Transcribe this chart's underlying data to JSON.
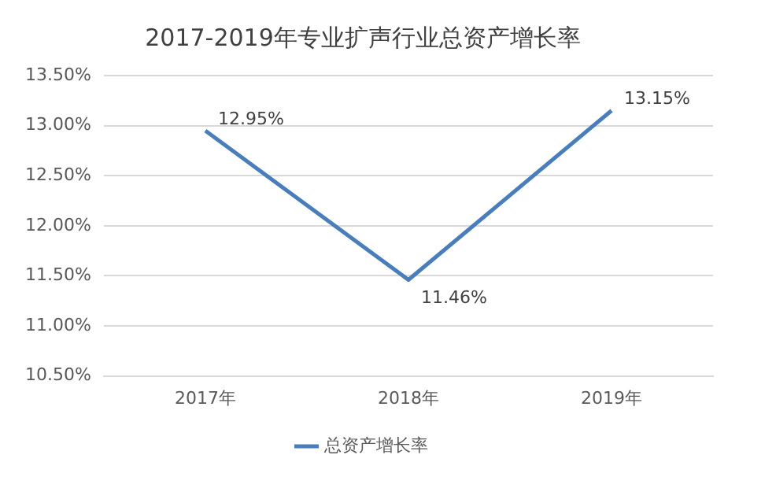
{
  "chart_data": {
    "type": "line",
    "title": "2017-2019年专业扩声行业总资产增长率",
    "categories": [
      "2017年",
      "2018年",
      "2019年"
    ],
    "series": [
      {
        "name": "总资产增长率",
        "color": "#4a7ebb",
        "values": [
          12.95,
          11.46,
          13.15
        ],
        "value_labels": [
          "12.95%",
          "11.46%",
          "13.15%"
        ]
      }
    ],
    "ylim": [
      10.5,
      13.5
    ],
    "yticks": [
      {
        "value": 10.5,
        "label": "10.50%"
      },
      {
        "value": 11,
        "label": "11.00%"
      },
      {
        "value": 11.5,
        "label": "11.50%"
      },
      {
        "value": 12,
        "label": "12.00%"
      },
      {
        "value": 12.5,
        "label": "12.50%"
      },
      {
        "value": 13,
        "label": "13.00%"
      },
      {
        "value": 13.5,
        "label": "13.50%"
      }
    ],
    "grid": "y",
    "legend": "bottom",
    "marker": "none",
    "line_style": "solid"
  }
}
